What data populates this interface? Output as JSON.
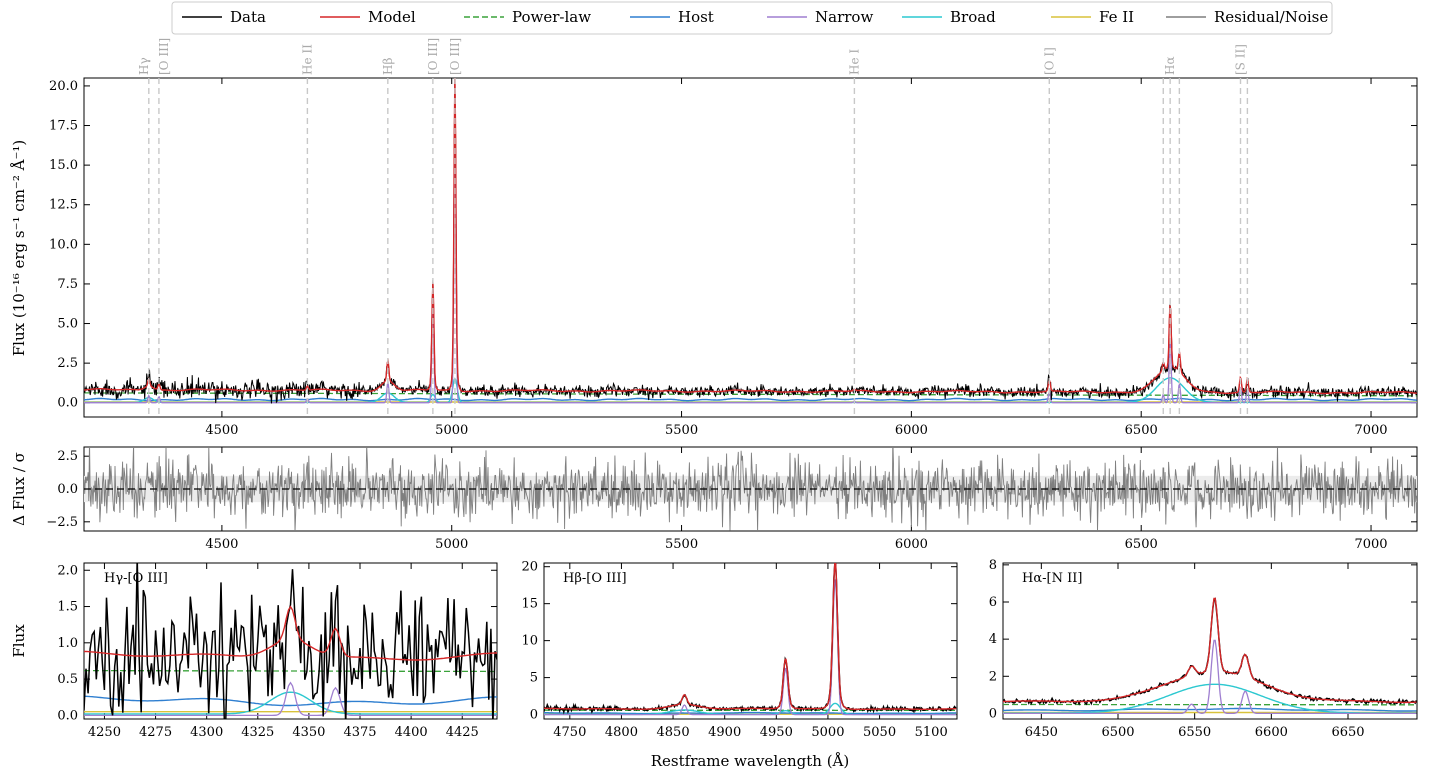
{
  "colors": {
    "data": "#000000",
    "model": "#d62728",
    "powerlaw": "#3aa23a",
    "host": "#2f7fd0",
    "narrow": "#9f7fd0",
    "broad": "#2cc8d0",
    "feii": "#d8c23a",
    "residual": "#7f7f7f",
    "emline": "#c8c8c8"
  },
  "legend": [
    {
      "key": "data",
      "label": "Data"
    },
    {
      "key": "model",
      "label": "Model"
    },
    {
      "key": "powerlaw",
      "label": "Power-law"
    },
    {
      "key": "host",
      "label": "Host"
    },
    {
      "key": "narrow",
      "label": "Narrow"
    },
    {
      "key": "broad",
      "label": "Broad"
    },
    {
      "key": "feii",
      "label": "Fe II"
    },
    {
      "key": "residual",
      "label": "Residual/Noise"
    }
  ],
  "chart_data": [
    {
      "type": "line",
      "panel": "spectrum",
      "ylabel": "Flux (10⁻¹⁶ erg s⁻¹ cm⁻² Å⁻¹)",
      "xlim": [
        4200,
        7100
      ],
      "ylim": [
        -0.9,
        20.5
      ],
      "xticks": [
        "4500",
        "5000",
        "5500",
        "6000",
        "6500",
        "7000"
      ],
      "yticks": [
        "0.0",
        "2.5",
        "5.0",
        "7.5",
        "10.0",
        "12.5",
        "15.0",
        "17.5",
        "20.0"
      ],
      "continuum": {
        "powerlaw_at_4200": 0.62,
        "powerlaw_at_7100": 0.44,
        "host_level": 0.2,
        "feii_level": 0.05,
        "noise_sigma": 0.18
      },
      "emission_lines": [
        {
          "label": "Hγ",
          "wavelength": 4341,
          "narrow_peak": 0.45,
          "broad_peak": 0.3,
          "broad_sigma": 10
        },
        {
          "label": "[O III]",
          "wavelength": 4363,
          "narrow_peak": 0.38,
          "broad_peak": 0,
          "broad_sigma": 0
        },
        {
          "label": "He II",
          "wavelength": 4686,
          "narrow_peak": 0.25,
          "broad_peak": 0,
          "broad_sigma": 0
        },
        {
          "label": "Hβ",
          "wavelength": 4861,
          "narrow_peak": 1.3,
          "broad_peak": 0.6,
          "broad_sigma": 14
        },
        {
          "label": "[O III]",
          "wavelength": 4959,
          "narrow_peak": 6.3,
          "broad_peak": 0.5,
          "broad_sigma": 5
        },
        {
          "label": "[O III]",
          "wavelength": 5007,
          "narrow_peak": 18.5,
          "broad_peak": 1.5,
          "broad_sigma": 5
        },
        {
          "label": "He I",
          "wavelength": 5876,
          "narrow_peak": 0.1,
          "broad_peak": 0,
          "broad_sigma": 0
        },
        {
          "label": "[O I]",
          "wavelength": 6300,
          "narrow_peak": 0.7,
          "broad_peak": 0,
          "broad_sigma": 0
        },
        {
          "label": "Hα",
          "wavelength": 6563,
          "narrow_peak": 4.0,
          "broad_peak": 1.55,
          "broad_sigma": 30
        },
        {
          "label": "[N II]",
          "wavelength": 6548,
          "narrow_peak": 0.5,
          "broad_peak": 0,
          "broad_sigma": 0
        },
        {
          "label": "[N II]",
          "wavelength": 6583,
          "narrow_peak": 1.2,
          "broad_peak": 0,
          "broad_sigma": 0
        },
        {
          "label": "[S II]",
          "wavelength": 6716,
          "narrow_peak": 0.95,
          "broad_peak": 0,
          "broad_sigma": 0
        },
        {
          "label": "[S II]",
          "wavelength": 6731,
          "narrow_peak": 0.85,
          "broad_peak": 0,
          "broad_sigma": 0
        }
      ],
      "line_markers": [
        {
          "label": "Hγ",
          "wavelength": 4341
        },
        {
          "label": "[O III]",
          "wavelength": 4363
        },
        {
          "label": "He II",
          "wavelength": 4686
        },
        {
          "label": "Hβ",
          "wavelength": 4861
        },
        {
          "label": "[O III]",
          "wavelength": 4959
        },
        {
          "label": "[O III]",
          "wavelength": 5007
        },
        {
          "label": "He I",
          "wavelength": 5876
        },
        {
          "label": "[O I]",
          "wavelength": 6300
        },
        {
          "label": "Hα",
          "wavelength": 6563
        },
        {
          "label": "",
          "wavelength": 6548
        },
        {
          "label": "",
          "wavelength": 6583
        },
        {
          "label": "[S II]",
          "wavelength": 6716
        },
        {
          "label": "",
          "wavelength": 6731
        }
      ]
    },
    {
      "type": "line",
      "panel": "residual",
      "ylabel": "Δ Flux / σ",
      "xlim": [
        4200,
        7100
      ],
      "ylim": [
        -3.2,
        3.2
      ],
      "xticks": [
        "4500",
        "5000",
        "5500",
        "6000",
        "6500",
        "7000"
      ],
      "yticks": [
        "−2.5",
        "0.0",
        "2.5"
      ],
      "residual_sigma": 1.1
    },
    {
      "type": "line",
      "panel": "zoom-hgamma",
      "title": "Hγ-[O III]",
      "ylabel": "Flux",
      "xlim": [
        4240,
        4442
      ],
      "ylim": [
        -0.05,
        2.1
      ],
      "xticks": [
        "4250",
        "4275",
        "4300",
        "4325",
        "4350",
        "4375",
        "4400",
        "4425"
      ],
      "yticks": [
        "0.0",
        "0.5",
        "1.0",
        "1.5",
        "2.0"
      ],
      "model_baseline": 0.85,
      "powerlaw_level": 0.63,
      "data_noise_sigma": 0.3
    },
    {
      "type": "line",
      "panel": "zoom-hbeta",
      "title": "Hβ-[O III]",
      "ylabel": "",
      "xlim": [
        4725,
        5125
      ],
      "ylim": [
        -0.6,
        20.5
      ],
      "xticks": [
        "4750",
        "4800",
        "4850",
        "4900",
        "4950",
        "5000",
        "5050",
        "5100"
      ],
      "yticks": [
        "0",
        "5",
        "10",
        "15",
        "20"
      ],
      "model_baseline": 0.75
    },
    {
      "type": "line",
      "panel": "zoom-halpha",
      "title": "Hα-[N II]",
      "ylabel": "",
      "xlim": [
        6425,
        6695
      ],
      "ylim": [
        -0.3,
        8.1
      ],
      "xticks": [
        "6450",
        "6500",
        "6550",
        "6600",
        "6650"
      ],
      "yticks": [
        "0",
        "2",
        "4",
        "6",
        "8"
      ],
      "model_baseline": 0.7
    }
  ],
  "xlabel": "Restframe wavelength (Å)"
}
